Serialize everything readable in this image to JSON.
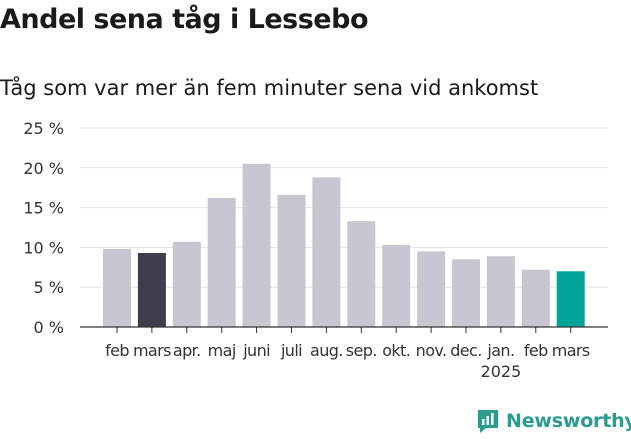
{
  "title": "Andel sena tåg i Lessebo",
  "subtitle": "Tåg som var mer än fem minuter sena vid ankomst",
  "brand": "Newsworthy",
  "colors": {
    "bar_default": "#c8c6d0",
    "bar_highlight_dark": "#3f3d4c",
    "bar_highlight_current": "#00a499",
    "brand": "#2a9d8f",
    "grid": "#e3e3e3"
  },
  "chart_data": {
    "type": "bar",
    "title": "Andel sena tåg i Lessebo",
    "subtitle": "Tåg som var mer än fem minuter sena vid ankomst",
    "categories": [
      "feb",
      "mars",
      "apr.",
      "maj",
      "juni",
      "juli",
      "aug.",
      "sep.",
      "okt.",
      "nov.",
      "dec.",
      "jan.",
      "feb",
      "mars"
    ],
    "year_labels": [
      {
        "index": 11,
        "label": "2025"
      }
    ],
    "values": [
      9.8,
      9.3,
      10.7,
      16.2,
      20.5,
      16.6,
      18.8,
      13.3,
      10.3,
      9.5,
      8.5,
      8.9,
      7.2,
      7.0
    ],
    "highlight": [
      {
        "index": 1,
        "color": "dark"
      },
      {
        "index": 13,
        "color": "current"
      }
    ],
    "ylim": [
      0,
      25
    ],
    "yticks": [
      0,
      5,
      10,
      15,
      20,
      25
    ],
    "ytick_labels": [
      "0 %",
      "5 %",
      "10 %",
      "15 %",
      "20 %",
      "25 %"
    ],
    "grid": true,
    "legend": "none"
  }
}
